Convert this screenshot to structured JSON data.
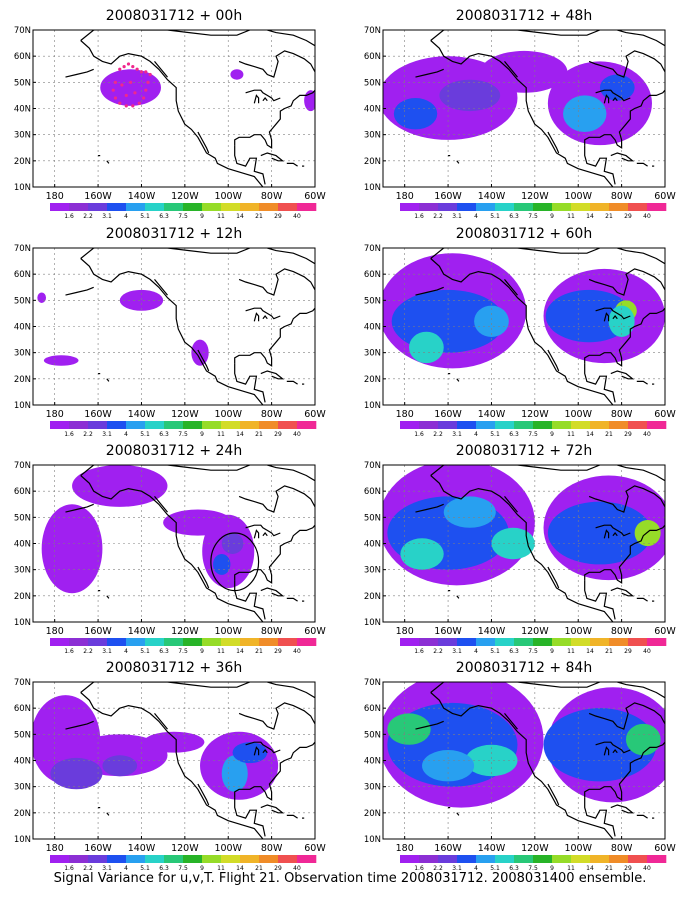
{
  "figure": {
    "caption": "Signal Variance for u,v,T. Flight 21. Observation time 2008031712. 2008031400 ensemble."
  },
  "colors": {
    "levels": [
      "#a020f0",
      "#8c2fd4",
      "#6a3cdc",
      "#1e50f0",
      "#28a0f0",
      "#28d2c8",
      "#28c878",
      "#28b428",
      "#96dc28",
      "#d2dc28",
      "#f0b428",
      "#f08c28",
      "#f05050",
      "#f02896"
    ],
    "coast": "#000000",
    "grid": "#808080"
  },
  "chart_data": [
    {
      "type": "heatmap",
      "title": "2008031712 + 00h",
      "x_ticks": [
        "180",
        "160W",
        "140W",
        "120W",
        "100W",
        "80W",
        "60W"
      ],
      "y_ticks": [
        "10N",
        "20N",
        "30N",
        "40N",
        "50N",
        "60N",
        "70N"
      ],
      "xlim": [
        -190,
        -60
      ],
      "ylim": [
        10,
        70
      ],
      "grid": true,
      "colorbar": {
        "labels": [
          "1.6",
          "2.2",
          "3.1",
          "4",
          "5.1",
          "6.3",
          "7.5",
          "9",
          "11",
          "14",
          "21",
          "29",
          "40"
        ]
      },
      "blobs": [
        {
          "lon": -145,
          "lat": 48,
          "rx": 14,
          "ry": 7,
          "level": 0
        },
        {
          "lon": -96,
          "lat": 53,
          "rx": 3,
          "ry": 2,
          "level": 0
        },
        {
          "lon": -62,
          "lat": 43,
          "rx": 3,
          "ry": 4,
          "level": 0
        }
      ],
      "observation_points": [
        [
          -150,
          55
        ],
        [
          -148,
          56
        ],
        [
          -146,
          57
        ],
        [
          -144,
          56
        ],
        [
          -142,
          55
        ],
        [
          -140,
          54
        ],
        [
          -138,
          54
        ],
        [
          -136,
          53
        ],
        [
          -152,
          50
        ],
        [
          -153,
          47
        ],
        [
          -152,
          44
        ],
        [
          -150,
          42
        ],
        [
          -147,
          41
        ],
        [
          -144,
          41
        ],
        [
          -141,
          42
        ],
        [
          -139,
          44
        ],
        [
          -138,
          47
        ],
        [
          -137,
          50
        ],
        [
          -149,
          49
        ],
        [
          -145,
          50
        ],
        [
          -143,
          46
        ],
        [
          -147,
          45
        ]
      ]
    },
    {
      "type": "heatmap",
      "title": "2008031712 + 12h",
      "x_ticks": [
        "180",
        "160W",
        "140W",
        "120W",
        "100W",
        "80W",
        "60W"
      ],
      "y_ticks": [
        "10N",
        "20N",
        "30N",
        "40N",
        "50N",
        "60N",
        "70N"
      ],
      "xlim": [
        -190,
        -60
      ],
      "ylim": [
        10,
        70
      ],
      "grid": true,
      "colorbar": {
        "labels": [
          "1.6",
          "2.2",
          "3.1",
          "4",
          "5.1",
          "6.3",
          "7.5",
          "9",
          "11",
          "14",
          "21",
          "29",
          "40"
        ]
      },
      "blobs": [
        {
          "lon": -140,
          "lat": 50,
          "rx": 10,
          "ry": 4,
          "level": 0
        },
        {
          "lon": -177,
          "lat": 27,
          "rx": 8,
          "ry": 2,
          "level": 0
        },
        {
          "lon": -113,
          "lat": 30,
          "rx": 4,
          "ry": 5,
          "level": 0
        },
        {
          "lon": -186,
          "lat": 51,
          "rx": 2,
          "ry": 2,
          "level": 0
        }
      ],
      "observation_points": []
    },
    {
      "type": "heatmap",
      "title": "2008031712 + 24h",
      "x_ticks": [
        "180",
        "160W",
        "140W",
        "120W",
        "100W",
        "80W",
        "60W"
      ],
      "y_ticks": [
        "10N",
        "20N",
        "30N",
        "40N",
        "50N",
        "60N",
        "70N"
      ],
      "xlim": [
        -190,
        -60
      ],
      "ylim": [
        10,
        70
      ],
      "grid": true,
      "colorbar": {
        "labels": [
          "1.6",
          "2.2",
          "3.1",
          "4",
          "5.1",
          "6.3",
          "7.5",
          "9",
          "11",
          "14",
          "21",
          "29",
          "40"
        ]
      },
      "blobs": [
        {
          "lon": -172,
          "lat": 38,
          "rx": 14,
          "ry": 17,
          "level": 0
        },
        {
          "lon": -150,
          "lat": 62,
          "rx": 22,
          "ry": 8,
          "level": 0
        },
        {
          "lon": -114,
          "lat": 48,
          "rx": 16,
          "ry": 5,
          "level": 0
        },
        {
          "lon": -100,
          "lat": 37,
          "rx": 12,
          "ry": 14,
          "level": 0
        },
        {
          "lon": -103,
          "lat": 32,
          "rx": 4,
          "ry": 4,
          "level": 3
        },
        {
          "lon": -98,
          "lat": 40,
          "rx": 5,
          "ry": 4,
          "level": 2
        }
      ],
      "circle": {
        "lon": -97,
        "lat": 33,
        "rx": 11,
        "ry": 11
      },
      "observation_points": []
    },
    {
      "type": "heatmap",
      "title": "2008031712 + 36h",
      "x_ticks": [
        "180",
        "160W",
        "140W",
        "120W",
        "100W",
        "80W",
        "60W"
      ],
      "y_ticks": [
        "10N",
        "20N",
        "30N",
        "40N",
        "50N",
        "60N",
        "70N"
      ],
      "xlim": [
        -190,
        -60
      ],
      "ylim": [
        10,
        70
      ],
      "grid": true,
      "colorbar": {
        "labels": [
          "1.6",
          "2.2",
          "3.1",
          "4",
          "5.1",
          "6.3",
          "7.5",
          "9",
          "11",
          "14",
          "21",
          "29",
          "40"
        ]
      },
      "blobs": [
        {
          "lon": -175,
          "lat": 48,
          "rx": 16,
          "ry": 17,
          "level": 0
        },
        {
          "lon": -150,
          "lat": 42,
          "rx": 22,
          "ry": 8,
          "level": 0
        },
        {
          "lon": -125,
          "lat": 47,
          "rx": 14,
          "ry": 4,
          "level": 0
        },
        {
          "lon": -95,
          "lat": 38,
          "rx": 18,
          "ry": 13,
          "level": 0
        },
        {
          "lon": -170,
          "lat": 35,
          "rx": 12,
          "ry": 6,
          "level": 2
        },
        {
          "lon": -97,
          "lat": 35,
          "rx": 6,
          "ry": 7,
          "level": 4
        },
        {
          "lon": -90,
          "lat": 43,
          "rx": 8,
          "ry": 4,
          "level": 3
        },
        {
          "lon": -150,
          "lat": 38,
          "rx": 8,
          "ry": 4,
          "level": 2
        }
      ],
      "observation_points": []
    },
    {
      "type": "heatmap",
      "title": "2008031712 + 48h",
      "x_ticks": [
        "180",
        "160W",
        "140W",
        "120W",
        "100W",
        "80W",
        "60W"
      ],
      "y_ticks": [
        "10N",
        "20N",
        "30N",
        "40N",
        "50N",
        "60N",
        "70N"
      ],
      "xlim": [
        -190,
        -60
      ],
      "ylim": [
        10,
        70
      ],
      "grid": true,
      "colorbar": {
        "labels": [
          "1.6",
          "2.2",
          "3.1",
          "4",
          "5.1",
          "6.3",
          "7.5",
          "9",
          "11",
          "14",
          "21",
          "29",
          "40"
        ]
      },
      "blobs": [
        {
          "lon": -160,
          "lat": 44,
          "rx": 32,
          "ry": 16,
          "level": 0
        },
        {
          "lon": -90,
          "lat": 42,
          "rx": 24,
          "ry": 16,
          "level": 0
        },
        {
          "lon": -125,
          "lat": 54,
          "rx": 20,
          "ry": 8,
          "level": 0
        },
        {
          "lon": -175,
          "lat": 38,
          "rx": 10,
          "ry": 6,
          "level": 3
        },
        {
          "lon": -97,
          "lat": 38,
          "rx": 10,
          "ry": 7,
          "level": 4
        },
        {
          "lon": -150,
          "lat": 45,
          "rx": 14,
          "ry": 6,
          "level": 2
        },
        {
          "lon": -82,
          "lat": 48,
          "rx": 8,
          "ry": 5,
          "level": 3
        }
      ],
      "observation_points": []
    },
    {
      "type": "heatmap",
      "title": "2008031712 + 60h",
      "x_ticks": [
        "180",
        "160W",
        "140W",
        "120W",
        "100W",
        "80W",
        "60W"
      ],
      "y_ticks": [
        "10N",
        "20N",
        "30N",
        "40N",
        "50N",
        "60N",
        "70N"
      ],
      "xlim": [
        -190,
        -60
      ],
      "ylim": [
        10,
        70
      ],
      "grid": true,
      "colorbar": {
        "labels": [
          "1.6",
          "2.2",
          "3.1",
          "4",
          "5.1",
          "6.3",
          "7.5",
          "9",
          "11",
          "14",
          "21",
          "29",
          "40"
        ]
      },
      "blobs": [
        {
          "lon": -158,
          "lat": 46,
          "rx": 34,
          "ry": 22,
          "level": 0
        },
        {
          "lon": -88,
          "lat": 44,
          "rx": 28,
          "ry": 18,
          "level": 0
        },
        {
          "lon": -160,
          "lat": 42,
          "rx": 26,
          "ry": 12,
          "level": 3
        },
        {
          "lon": -95,
          "lat": 44,
          "rx": 20,
          "ry": 10,
          "level": 3
        },
        {
          "lon": -170,
          "lat": 32,
          "rx": 8,
          "ry": 6,
          "level": 5
        },
        {
          "lon": -140,
          "lat": 42,
          "rx": 8,
          "ry": 6,
          "level": 4
        },
        {
          "lon": -78,
          "lat": 46,
          "rx": 5,
          "ry": 4,
          "level": 8
        },
        {
          "lon": -80,
          "lat": 42,
          "rx": 6,
          "ry": 6,
          "level": 5
        }
      ],
      "observation_points": []
    },
    {
      "type": "heatmap",
      "title": "2008031712 + 72h",
      "x_ticks": [
        "180",
        "160W",
        "140W",
        "120W",
        "100W",
        "80W",
        "60W"
      ],
      "y_ticks": [
        "10N",
        "20N",
        "30N",
        "40N",
        "50N",
        "60N",
        "70N"
      ],
      "xlim": [
        -190,
        -60
      ],
      "ylim": [
        10,
        70
      ],
      "grid": true,
      "colorbar": {
        "labels": [
          "1.6",
          "2.2",
          "3.1",
          "4",
          "5.1",
          "6.3",
          "7.5",
          "9",
          "11",
          "14",
          "21",
          "29",
          "40"
        ]
      },
      "blobs": [
        {
          "lon": -156,
          "lat": 48,
          "rx": 36,
          "ry": 24,
          "level": 0
        },
        {
          "lon": -86,
          "lat": 46,
          "rx": 30,
          "ry": 20,
          "level": 0
        },
        {
          "lon": -160,
          "lat": 44,
          "rx": 28,
          "ry": 14,
          "level": 3
        },
        {
          "lon": -90,
          "lat": 44,
          "rx": 24,
          "ry": 12,
          "level": 3
        },
        {
          "lon": -172,
          "lat": 36,
          "rx": 10,
          "ry": 6,
          "level": 5
        },
        {
          "lon": -130,
          "lat": 40,
          "rx": 10,
          "ry": 6,
          "level": 5
        },
        {
          "lon": -68,
          "lat": 44,
          "rx": 6,
          "ry": 5,
          "level": 8
        },
        {
          "lon": -150,
          "lat": 52,
          "rx": 12,
          "ry": 6,
          "level": 4
        }
      ],
      "observation_points": []
    },
    {
      "type": "heatmap",
      "title": "2008031712 + 84h",
      "x_ticks": [
        "180",
        "160W",
        "140W",
        "120W",
        "100W",
        "80W",
        "60W"
      ],
      "y_ticks": [
        "10N",
        "20N",
        "30N",
        "40N",
        "50N",
        "60N",
        "70N"
      ],
      "xlim": [
        -190,
        -60
      ],
      "ylim": [
        10,
        70
      ],
      "grid": true,
      "colorbar": {
        "labels": [
          "1.6",
          "2.2",
          "3.1",
          "4",
          "5.1",
          "6.3",
          "7.5",
          "9",
          "11",
          "14",
          "21",
          "29",
          "40"
        ]
      },
      "blobs": [
        {
          "lon": -154,
          "lat": 48,
          "rx": 38,
          "ry": 26,
          "level": 0
        },
        {
          "lon": -84,
          "lat": 46,
          "rx": 30,
          "ry": 22,
          "level": 0
        },
        {
          "lon": -158,
          "lat": 46,
          "rx": 30,
          "ry": 16,
          "level": 3
        },
        {
          "lon": -90,
          "lat": 46,
          "rx": 26,
          "ry": 14,
          "level": 3
        },
        {
          "lon": -178,
          "lat": 52,
          "rx": 10,
          "ry": 6,
          "level": 6
        },
        {
          "lon": -140,
          "lat": 40,
          "rx": 12,
          "ry": 6,
          "level": 5
        },
        {
          "lon": -70,
          "lat": 48,
          "rx": 8,
          "ry": 6,
          "level": 6
        },
        {
          "lon": -160,
          "lat": 38,
          "rx": 12,
          "ry": 6,
          "level": 4
        }
      ],
      "observation_points": []
    }
  ]
}
